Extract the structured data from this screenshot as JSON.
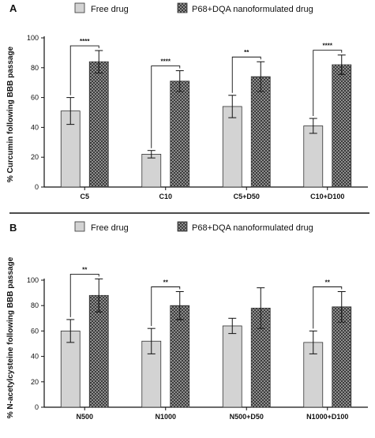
{
  "chart_data": [
    {
      "panel": "A",
      "type": "bar",
      "categories": [
        "C5",
        "C10",
        "C5+D50",
        "C10+D100"
      ],
      "series": [
        {
          "name": "Free drug",
          "values": [
            51,
            22,
            54,
            41
          ],
          "errors": [
            9,
            2.5,
            7.5,
            5
          ],
          "color": "#d3d3d3",
          "pattern": "solid"
        },
        {
          "name": "P68+DQA nanoformulated drug",
          "values": [
            84,
            71,
            74,
            82
          ],
          "errors": [
            7.5,
            7,
            10,
            6.5
          ],
          "color": "#3f3f3f",
          "pattern": "dotted"
        }
      ],
      "significance": [
        "****",
        "****",
        "**",
        "****"
      ],
      "ylabel": "% Curcumin following BBB passage",
      "xlabel": "",
      "ylim": [
        0,
        100
      ],
      "yticks": [
        0,
        20,
        40,
        60,
        80,
        100
      ],
      "legend_position": "top",
      "grid": false
    },
    {
      "panel": "B",
      "type": "bar",
      "categories": [
        "N500",
        "N1000",
        "N500+D50",
        "N1000+D100"
      ],
      "series": [
        {
          "name": "Free drug",
          "values": [
            60,
            52,
            64,
            51
          ],
          "errors": [
            9,
            10,
            6,
            9
          ],
          "color": "#d3d3d3",
          "pattern": "solid"
        },
        {
          "name": "P68+DQA nanoformulated drug",
          "values": [
            88,
            80,
            78,
            79
          ],
          "errors": [
            13,
            11,
            16,
            12
          ],
          "color": "#3f3f3f",
          "pattern": "dotted"
        }
      ],
      "significance": [
        "**",
        "**",
        "",
        "**"
      ],
      "ylabel": "% N-acetylcysteine following BBB passage",
      "xlabel": "",
      "ylim": [
        0,
        100
      ],
      "yticks": [
        0,
        20,
        40,
        60,
        80,
        100
      ],
      "legend_position": "top",
      "grid": false
    }
  ]
}
